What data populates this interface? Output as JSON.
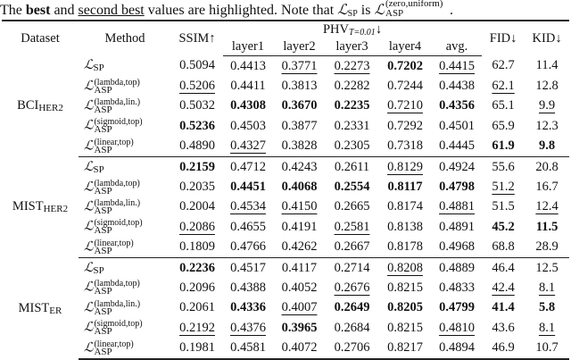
{
  "caption": {
    "part1": "The ",
    "best": "best",
    "part2": " and ",
    "second_best": "second best",
    "part3": " values are highlighted. Note that ",
    "L": "ℒ",
    "sp_sub": "SP",
    "part4": " is ",
    "asp_sup": "(zero,uniform)",
    "asp_sub": "ASP",
    "part5": "."
  },
  "header": {
    "dataset": "Dataset",
    "method": "Method",
    "ssim": "SSIM↑",
    "phv": "PHV",
    "phv_sub": "T=0.01",
    "phv_arrow": "↓",
    "layers": [
      "layer1",
      "layer2",
      "layer3",
      "layer4",
      "avg."
    ],
    "fid": "FID↓",
    "kid": "KID↓"
  },
  "methods": [
    {
      "L": "ℒ",
      "sup": "",
      "sub": "SP"
    },
    {
      "L": "ℒ",
      "sup": "(lambda,top)",
      "sub": "ASP"
    },
    {
      "L": "ℒ",
      "sup": "(lambda,lin.)",
      "sub": "ASP"
    },
    {
      "L": "ℒ",
      "sup": "(sigmoid,top)",
      "sub": "ASP"
    },
    {
      "L": "ℒ",
      "sup": "(linear,top)",
      "sub": "ASP"
    }
  ],
  "blocks": [
    {
      "dataset": "BCI",
      "dataset_sub": "HER2",
      "rows": [
        [
          {
            "v": "0.5094",
            "s": ""
          },
          {
            "v": "0.4413",
            "s": ""
          },
          {
            "v": "0.3771",
            "s": "u"
          },
          {
            "v": "0.2273",
            "s": "u"
          },
          {
            "v": "0.7202",
            "s": "b"
          },
          {
            "v": "0.4415",
            "s": "u"
          },
          {
            "v": "62.7",
            "s": ""
          },
          {
            "v": "11.4",
            "s": ""
          }
        ],
        [
          {
            "v": "0.5206",
            "s": "u"
          },
          {
            "v": "0.4411",
            "s": ""
          },
          {
            "v": "0.3813",
            "s": ""
          },
          {
            "v": "0.2282",
            "s": ""
          },
          {
            "v": "0.7244",
            "s": ""
          },
          {
            "v": "0.4438",
            "s": ""
          },
          {
            "v": "62.1",
            "s": "u"
          },
          {
            "v": "12.8",
            "s": ""
          }
        ],
        [
          {
            "v": "0.5032",
            "s": ""
          },
          {
            "v": "0.4308",
            "s": "b"
          },
          {
            "v": "0.3670",
            "s": "b"
          },
          {
            "v": "0.2235",
            "s": "b"
          },
          {
            "v": "0.7210",
            "s": "u"
          },
          {
            "v": "0.4356",
            "s": "b"
          },
          {
            "v": "65.1",
            "s": ""
          },
          {
            "v": "9.9",
            "s": "u"
          }
        ],
        [
          {
            "v": "0.5236",
            "s": "b"
          },
          {
            "v": "0.4503",
            "s": ""
          },
          {
            "v": "0.3877",
            "s": ""
          },
          {
            "v": "0.2331",
            "s": ""
          },
          {
            "v": "0.7292",
            "s": ""
          },
          {
            "v": "0.4501",
            "s": ""
          },
          {
            "v": "65.9",
            "s": ""
          },
          {
            "v": "12.3",
            "s": ""
          }
        ],
        [
          {
            "v": "0.4890",
            "s": ""
          },
          {
            "v": "0.4327",
            "s": "u"
          },
          {
            "v": "0.3828",
            "s": ""
          },
          {
            "v": "0.2305",
            "s": ""
          },
          {
            "v": "0.7318",
            "s": ""
          },
          {
            "v": "0.4445",
            "s": ""
          },
          {
            "v": "61.9",
            "s": "b"
          },
          {
            "v": "9.8",
            "s": "b"
          }
        ]
      ]
    },
    {
      "dataset": "MIST",
      "dataset_sub": "HER2",
      "rows": [
        [
          {
            "v": "0.2159",
            "s": "b"
          },
          {
            "v": "0.4712",
            "s": ""
          },
          {
            "v": "0.4243",
            "s": ""
          },
          {
            "v": "0.2611",
            "s": ""
          },
          {
            "v": "0.8129",
            "s": "u"
          },
          {
            "v": "0.4924",
            "s": ""
          },
          {
            "v": "55.6",
            "s": ""
          },
          {
            "v": "20.8",
            "s": ""
          }
        ],
        [
          {
            "v": "0.2035",
            "s": ""
          },
          {
            "v": "0.4451",
            "s": "b"
          },
          {
            "v": "0.4068",
            "s": "b"
          },
          {
            "v": "0.2554",
            "s": "b"
          },
          {
            "v": "0.8117",
            "s": "b"
          },
          {
            "v": "0.4798",
            "s": "b"
          },
          {
            "v": "51.2",
            "s": "u"
          },
          {
            "v": "16.7",
            "s": ""
          }
        ],
        [
          {
            "v": "0.2004",
            "s": ""
          },
          {
            "v": "0.4534",
            "s": "u"
          },
          {
            "v": "0.4150",
            "s": "u"
          },
          {
            "v": "0.2665",
            "s": ""
          },
          {
            "v": "0.8174",
            "s": ""
          },
          {
            "v": "0.4881",
            "s": "u"
          },
          {
            "v": "51.5",
            "s": ""
          },
          {
            "v": "12.4",
            "s": "u"
          }
        ],
        [
          {
            "v": "0.2086",
            "s": "u"
          },
          {
            "v": "0.4655",
            "s": ""
          },
          {
            "v": "0.4191",
            "s": ""
          },
          {
            "v": "0.2581",
            "s": "u"
          },
          {
            "v": "0.8138",
            "s": ""
          },
          {
            "v": "0.4891",
            "s": ""
          },
          {
            "v": "45.2",
            "s": "b"
          },
          {
            "v": "11.5",
            "s": "b"
          }
        ],
        [
          {
            "v": "0.1809",
            "s": ""
          },
          {
            "v": "0.4766",
            "s": ""
          },
          {
            "v": "0.4262",
            "s": ""
          },
          {
            "v": "0.2667",
            "s": ""
          },
          {
            "v": "0.8178",
            "s": ""
          },
          {
            "v": "0.4968",
            "s": ""
          },
          {
            "v": "68.8",
            "s": ""
          },
          {
            "v": "28.9",
            "s": ""
          }
        ]
      ]
    },
    {
      "dataset": "MIST",
      "dataset_sub": "ER",
      "rows": [
        [
          {
            "v": "0.2236",
            "s": "b"
          },
          {
            "v": "0.4517",
            "s": ""
          },
          {
            "v": "0.4117",
            "s": ""
          },
          {
            "v": "0.2714",
            "s": ""
          },
          {
            "v": "0.8208",
            "s": "u"
          },
          {
            "v": "0.4889",
            "s": ""
          },
          {
            "v": "46.4",
            "s": ""
          },
          {
            "v": "12.5",
            "s": ""
          }
        ],
        [
          {
            "v": "0.2096",
            "s": ""
          },
          {
            "v": "0.4388",
            "s": ""
          },
          {
            "v": "0.4052",
            "s": ""
          },
          {
            "v": "0.2676",
            "s": "u"
          },
          {
            "v": "0.8215",
            "s": ""
          },
          {
            "v": "0.4833",
            "s": ""
          },
          {
            "v": "42.4",
            "s": "u"
          },
          {
            "v": "8.1",
            "s": "u"
          }
        ],
        [
          {
            "v": "0.2061",
            "s": ""
          },
          {
            "v": "0.4336",
            "s": "b"
          },
          {
            "v": "0.4007",
            "s": "u"
          },
          {
            "v": "0.2649",
            "s": "b"
          },
          {
            "v": "0.8205",
            "s": "b"
          },
          {
            "v": "0.4799",
            "s": "b"
          },
          {
            "v": "41.4",
            "s": "b"
          },
          {
            "v": "5.8",
            "s": "b"
          }
        ],
        [
          {
            "v": "0.2192",
            "s": "u"
          },
          {
            "v": "0.4376",
            "s": "u"
          },
          {
            "v": "0.3965",
            "s": "b"
          },
          {
            "v": "0.2684",
            "s": ""
          },
          {
            "v": "0.8215",
            "s": ""
          },
          {
            "v": "0.4810",
            "s": "u"
          },
          {
            "v": "43.6",
            "s": ""
          },
          {
            "v": "8.1",
            "s": "u"
          }
        ],
        [
          {
            "v": "0.1981",
            "s": ""
          },
          {
            "v": "0.4581",
            "s": ""
          },
          {
            "v": "0.4072",
            "s": ""
          },
          {
            "v": "0.2706",
            "s": ""
          },
          {
            "v": "0.8217",
            "s": ""
          },
          {
            "v": "0.4894",
            "s": ""
          },
          {
            "v": "46.9",
            "s": ""
          },
          {
            "v": "10.7",
            "s": ""
          }
        ]
      ]
    }
  ]
}
